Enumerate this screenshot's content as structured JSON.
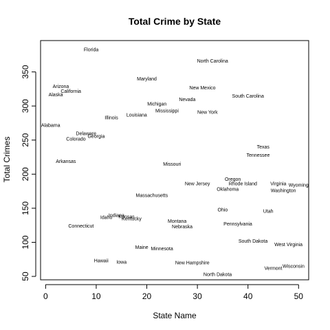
{
  "chart_data": {
    "type": "scatter",
    "title": "Total Crime by State",
    "xlabel": "State Name",
    "ylabel": "Total Crimes",
    "xlim": [
      -1,
      52
    ],
    "ylim": [
      45,
      396
    ],
    "xticks": [
      0,
      10,
      20,
      30,
      40,
      50
    ],
    "yticks": [
      50,
      100,
      150,
      200,
      250,
      300,
      350
    ],
    "grid": false,
    "points": [
      {
        "label": "Alabama",
        "x": 1,
        "y": 272
      },
      {
        "label": "Alaska",
        "x": 2,
        "y": 317
      },
      {
        "label": "Arizona",
        "x": 3,
        "y": 329
      },
      {
        "label": "Arkansas",
        "x": 4,
        "y": 219
      },
      {
        "label": "California",
        "x": 5,
        "y": 322
      },
      {
        "label": "Colorado",
        "x": 6,
        "y": 252
      },
      {
        "label": "Connecticut",
        "x": 7,
        "y": 124
      },
      {
        "label": "Delaware",
        "x": 8,
        "y": 260
      },
      {
        "label": "Florida",
        "x": 9,
        "y": 383
      },
      {
        "label": "Georgia",
        "x": 10,
        "y": 256
      },
      {
        "label": "Hawaii",
        "x": 11,
        "y": 73
      },
      {
        "label": "Idaho",
        "x": 12,
        "y": 137
      },
      {
        "label": "Illinois",
        "x": 13,
        "y": 283
      },
      {
        "label": "Indiana",
        "x": 14,
        "y": 140
      },
      {
        "label": "Iowa",
        "x": 15,
        "y": 71
      },
      {
        "label": "Kansas",
        "x": 16,
        "y": 138
      },
      {
        "label": "Kentucky",
        "x": 17,
        "y": 135
      },
      {
        "label": "Louisiana",
        "x": 18,
        "y": 287
      },
      {
        "label": "Maine",
        "x": 19,
        "y": 93
      },
      {
        "label": "Maryland",
        "x": 20,
        "y": 340
      },
      {
        "label": "Massachusetts",
        "x": 21,
        "y": 169
      },
      {
        "label": "Michigan",
        "x": 22,
        "y": 303
      },
      {
        "label": "Minnesota",
        "x": 23,
        "y": 91
      },
      {
        "label": "Mississippi",
        "x": 24,
        "y": 293
      },
      {
        "label": "Missouri",
        "x": 25,
        "y": 215
      },
      {
        "label": "Montana",
        "x": 26,
        "y": 131
      },
      {
        "label": "Nebraska",
        "x": 27,
        "y": 123
      },
      {
        "label": "Nevada",
        "x": 28,
        "y": 310
      },
      {
        "label": "New Hampshire",
        "x": 29,
        "y": 70
      },
      {
        "label": "New Jersey",
        "x": 30,
        "y": 186
      },
      {
        "label": "New Mexico",
        "x": 31,
        "y": 327
      },
      {
        "label": "New York",
        "x": 32,
        "y": 291
      },
      {
        "label": "North Carolina",
        "x": 33,
        "y": 366
      },
      {
        "label": "North Dakota",
        "x": 34,
        "y": 53
      },
      {
        "label": "Ohio",
        "x": 35,
        "y": 148
      },
      {
        "label": "Oklahoma",
        "x": 36,
        "y": 178
      },
      {
        "label": "Oregon",
        "x": 37,
        "y": 193
      },
      {
        "label": "Pennsylvania",
        "x": 38,
        "y": 127
      },
      {
        "label": "Rhode Island",
        "x": 39,
        "y": 186
      },
      {
        "label": "South Carolina",
        "x": 40,
        "y": 315
      },
      {
        "label": "South Dakota",
        "x": 41,
        "y": 102
      },
      {
        "label": "Tennessee",
        "x": 42,
        "y": 228
      },
      {
        "label": "Texas",
        "x": 43,
        "y": 240
      },
      {
        "label": "Utah",
        "x": 44,
        "y": 146
      },
      {
        "label": "Vermont",
        "x": 45,
        "y": 62
      },
      {
        "label": "Virginia",
        "x": 46,
        "y": 186
      },
      {
        "label": "Washington",
        "x": 47,
        "y": 176
      },
      {
        "label": "West Virginia",
        "x": 48,
        "y": 97
      },
      {
        "label": "Wisconsin",
        "x": 49,
        "y": 65
      },
      {
        "label": "Wyoming",
        "x": 50,
        "y": 184
      }
    ]
  }
}
